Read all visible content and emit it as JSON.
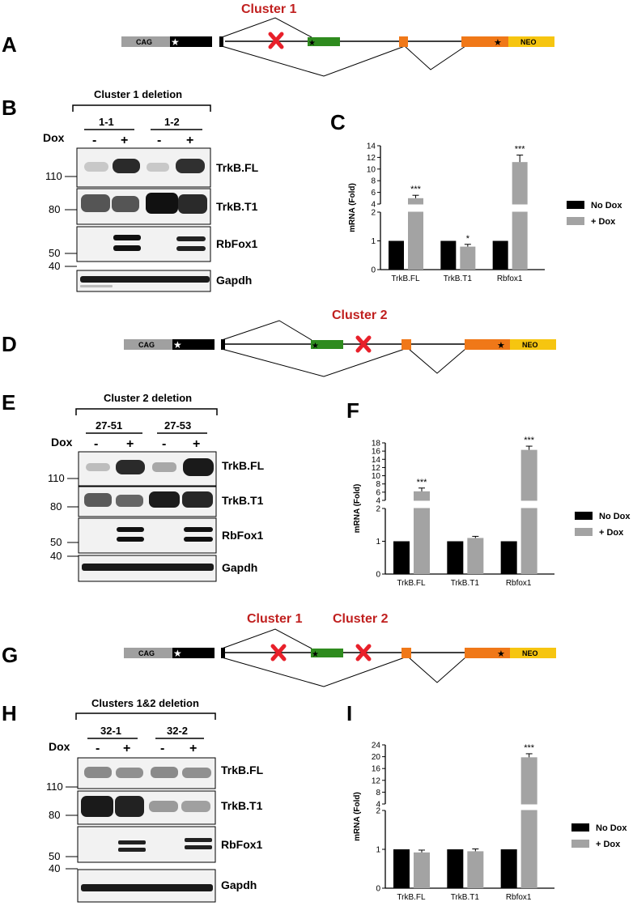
{
  "colors": {
    "cluster_red": "#c0201f",
    "cag_gray": "#a0a0a0",
    "exon_black": "#000000",
    "exon_green": "#2e8b1e",
    "exon_orange": "#f07818",
    "neo_yellow": "#f6c510",
    "nodox_bar": "#000000",
    "dox_bar": "#a3a3a3",
    "cross_red": "#e8202a"
  },
  "panels": [
    {
      "letter": "A",
      "titles": [
        "Cluster 1"
      ],
      "segments": {
        "cag": "CAG",
        "neo": "NEO"
      }
    },
    {
      "letter": "B",
      "header": "Cluster 1 deletion",
      "dox": "Dox",
      "lanes": [
        "1-1",
        "1-2"
      ],
      "signs": [
        "-",
        "+",
        "-",
        "+"
      ],
      "bands": [
        "TrkB.FL",
        "TrkB.T1",
        "RbFox1",
        "Gapdh"
      ],
      "mw": [
        "110",
        "80",
        "50",
        "40"
      ]
    },
    {
      "letter": "C",
      "chart_data": {
        "type": "bar",
        "ylabel": "mRNA (Fold)",
        "categories": [
          "TrkB.FL",
          "TrkB.T1",
          "Rbfox1"
        ],
        "series": [
          {
            "name": "No Dox",
            "values": [
              1,
              1,
              1
            ],
            "errors": [
              0,
              0,
              0
            ]
          },
          {
            "name": "+ Dox",
            "values": [
              5.0,
              0.8,
              11.2
            ],
            "errors": [
              0.5,
              0.08,
              1.2
            ]
          }
        ],
        "significance": [
          "***",
          "*",
          "***"
        ],
        "yaxis_lower": {
          "range": [
            0,
            2
          ],
          "ticks": [
            "0",
            "1",
            "2"
          ]
        },
        "yaxis_upper": {
          "range": [
            4,
            14
          ],
          "ticks": [
            "4",
            "6",
            "8",
            "10",
            "12",
            "14"
          ]
        },
        "legend_position": "right"
      }
    },
    {
      "letter": "D",
      "titles": [
        "Cluster 2"
      ],
      "segments": {
        "cag": "CAG",
        "neo": "NEO"
      }
    },
    {
      "letter": "E",
      "header": "Cluster 2 deletion",
      "dox": "Dox",
      "lanes": [
        "27-51",
        "27-53"
      ],
      "signs": [
        "-",
        "+",
        "-",
        "+"
      ],
      "bands": [
        "TrkB.FL",
        "TrkB.T1",
        "RbFox1",
        "Gapdh"
      ],
      "mw": [
        "110",
        "80",
        "50",
        "40"
      ]
    },
    {
      "letter": "F",
      "chart_data": {
        "type": "bar",
        "ylabel": "mRNA (Fold)",
        "categories": [
          "TrkB.FL",
          "TrkB.T1",
          "Rbfox1"
        ],
        "series": [
          {
            "name": "No Dox",
            "values": [
              1,
              1,
              1
            ],
            "errors": [
              0,
              0,
              0
            ]
          },
          {
            "name": "+ Dox",
            "values": [
              6.2,
              1.1,
              16.3
            ],
            "errors": [
              0.8,
              0.05,
              0.9
            ]
          }
        ],
        "significance": [
          "***",
          "",
          "***"
        ],
        "yaxis_lower": {
          "range": [
            0,
            2
          ],
          "ticks": [
            "0",
            "1",
            "2"
          ]
        },
        "yaxis_upper": {
          "range": [
            4,
            18
          ],
          "ticks": [
            "4",
            "6",
            "8",
            "10",
            "12",
            "14",
            "16",
            "18"
          ]
        },
        "legend_position": "right"
      }
    },
    {
      "letter": "G",
      "titles": [
        "Cluster 1",
        "Cluster 2"
      ],
      "segments": {
        "cag": "CAG",
        "neo": "NEO"
      }
    },
    {
      "letter": "H",
      "header": "Clusters 1&2 deletion",
      "dox": "Dox",
      "lanes": [
        "32-1",
        "32-2"
      ],
      "signs": [
        "-",
        "+",
        "-",
        "+"
      ],
      "bands": [
        "TrkB.FL",
        "TrkB.T1",
        "RbFox1",
        "Gapdh"
      ],
      "mw": [
        "110",
        "80",
        "50",
        "40"
      ]
    },
    {
      "letter": "I",
      "chart_data": {
        "type": "bar",
        "ylabel": "mRNA (Fold)",
        "categories": [
          "TrkB.FL",
          "TrkB.T1",
          "Rbfox1"
        ],
        "series": [
          {
            "name": "No Dox",
            "values": [
              1,
              1,
              1
            ],
            "errors": [
              0,
              0,
              0
            ]
          },
          {
            "name": "+ Dox",
            "values": [
              0.92,
              0.95,
              19.8
            ],
            "errors": [
              0.06,
              0.06,
              1.2
            ]
          }
        ],
        "significance": [
          "",
          "",
          "***"
        ],
        "yaxis_lower": {
          "range": [
            0,
            2
          ],
          "ticks": [
            "0",
            "1",
            "2"
          ]
        },
        "yaxis_upper": {
          "range": [
            4,
            24
          ],
          "ticks": [
            "4",
            "8",
            "12",
            "16",
            "20",
            "24"
          ]
        },
        "legend_position": "right"
      }
    }
  ]
}
